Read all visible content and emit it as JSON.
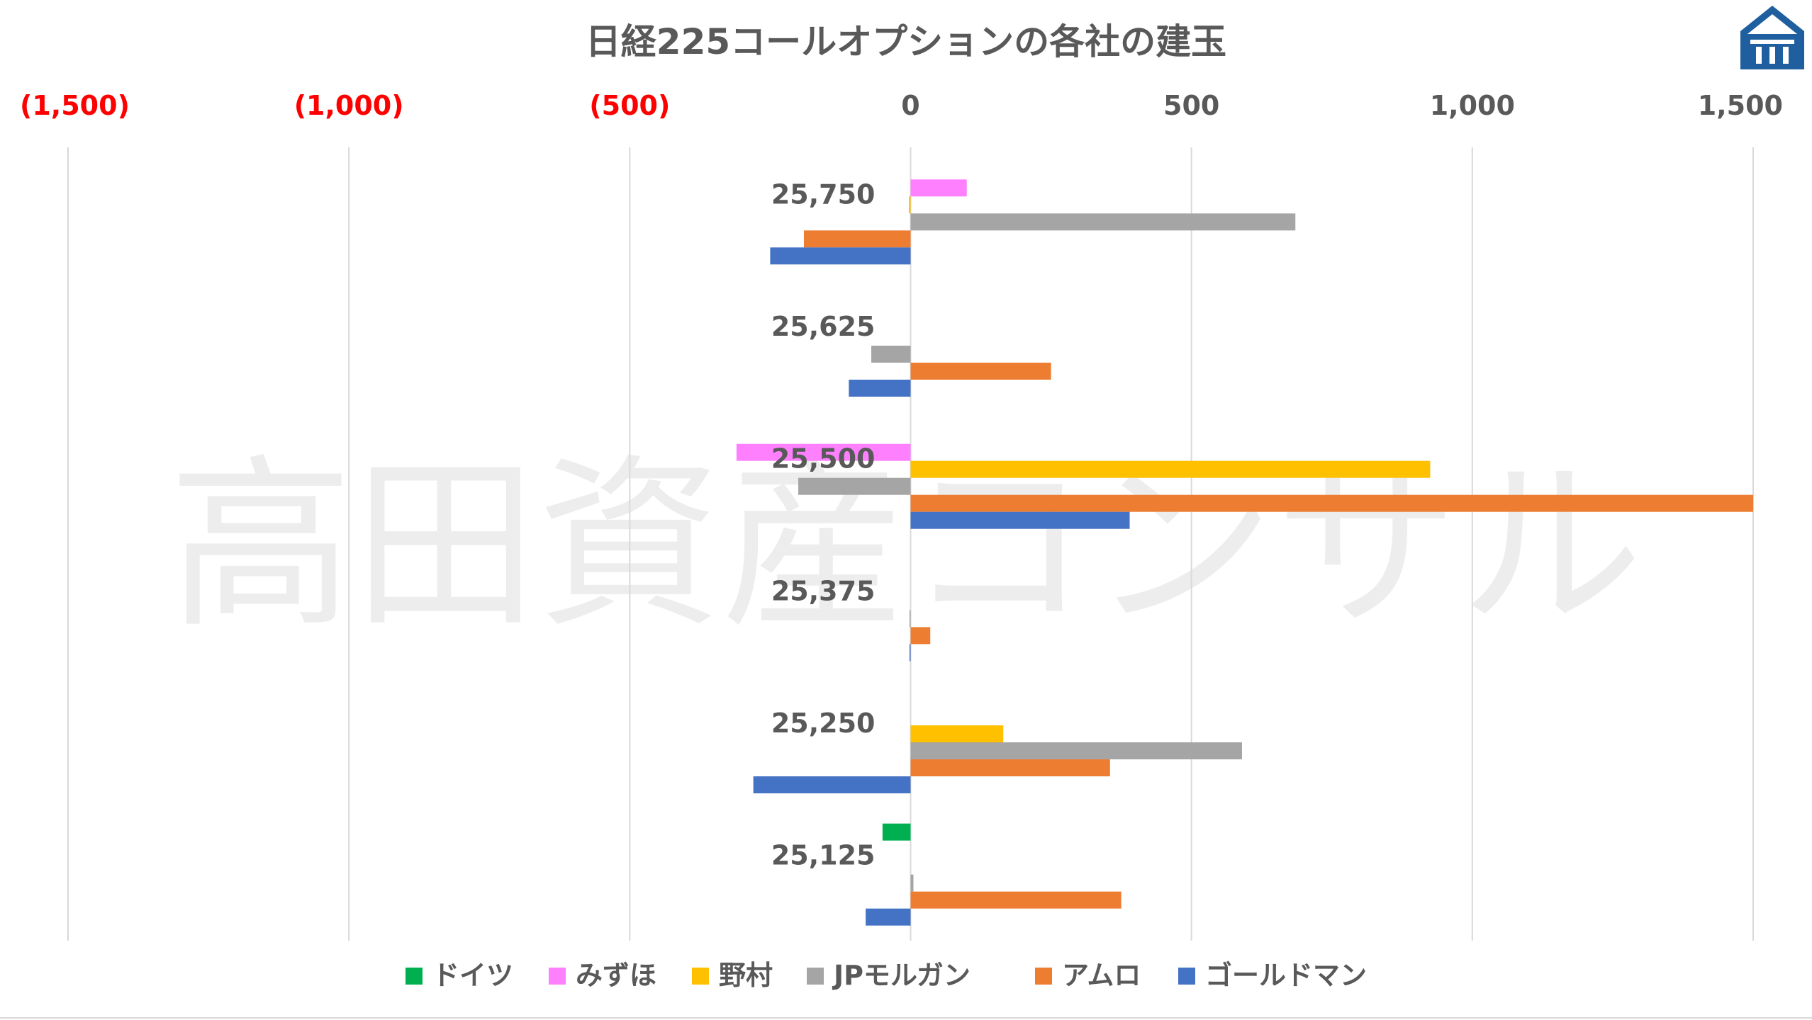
{
  "chart_data": {
    "type": "bar",
    "orientation": "horizontal",
    "title": "日経225コールオプションの各社の建玉",
    "watermark": "高田資産コンサル",
    "xlim": [
      -1500,
      1500
    ],
    "xticks": [
      -1500,
      -1000,
      -500,
      0,
      500,
      1000,
      1500
    ],
    "xtick_labels": [
      "(1,500)",
      "(1,000)",
      "(500)",
      "0",
      "500",
      "1,000",
      "1,500"
    ],
    "negative_tick_color": "#ff0000",
    "positive_tick_color": "#595959",
    "grid": true,
    "legend_position": "bottom",
    "categories": [
      "25,750",
      "25,625",
      "25,500",
      "25,375",
      "25,250",
      "25,125"
    ],
    "series": [
      {
        "name": "ドイツ",
        "color": "#00b050",
        "values": [
          0,
          0,
          0,
          0,
          0,
          -50
        ]
      },
      {
        "name": "みずほ",
        "color": "#ff80ff",
        "values": [
          100,
          0,
          -310,
          0,
          0,
          0
        ]
      },
      {
        "name": "野村",
        "color": "#ffc000",
        "values": [
          -3,
          0,
          925,
          0,
          165,
          0
        ]
      },
      {
        "name": "JPモルガン",
        "color": "#a5a5a5",
        "values": [
          685,
          -70,
          -200,
          -2,
          590,
          5
        ]
      },
      {
        "name": "アムロ",
        "color": "#ed7d31",
        "values": [
          -190,
          250,
          1500,
          35,
          355,
          375
        ]
      },
      {
        "name": "ゴールドマン",
        "color": "#4472c4",
        "values": [
          -250,
          -110,
          390,
          -2,
          -280,
          -80
        ]
      }
    ]
  },
  "logo": {
    "name": "company-logo",
    "color": "#1f5f9f"
  }
}
